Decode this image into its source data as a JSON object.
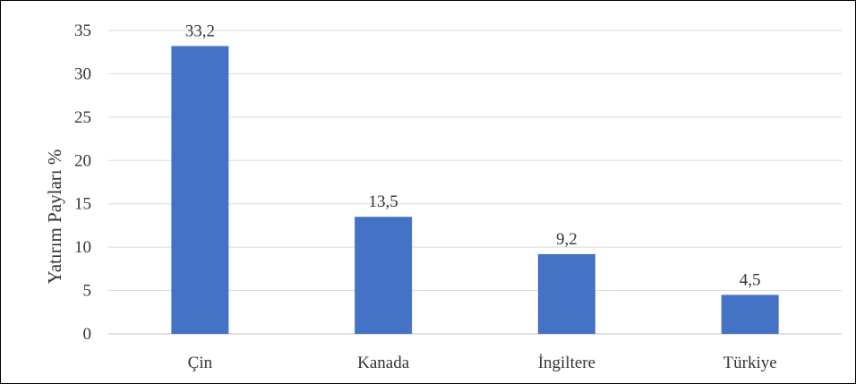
{
  "chart_data": {
    "type": "bar",
    "categories": [
      "Çin",
      "Kanada",
      "İngiltere",
      "Türkiye"
    ],
    "values": [
      33.2,
      13.5,
      9.2,
      4.5
    ],
    "value_labels": [
      "33,2",
      "13,5",
      "9,2",
      "4,5"
    ],
    "ylabel": "Yatırım Payları %",
    "ylim": [
      0,
      35
    ],
    "yticks": [
      0,
      5,
      10,
      15,
      20,
      25,
      30,
      35
    ],
    "grid": true,
    "legend": "none",
    "bar_color": "#4472C4",
    "grid_color": "#D9D9D9",
    "axis_color": "#BFBFBF"
  }
}
